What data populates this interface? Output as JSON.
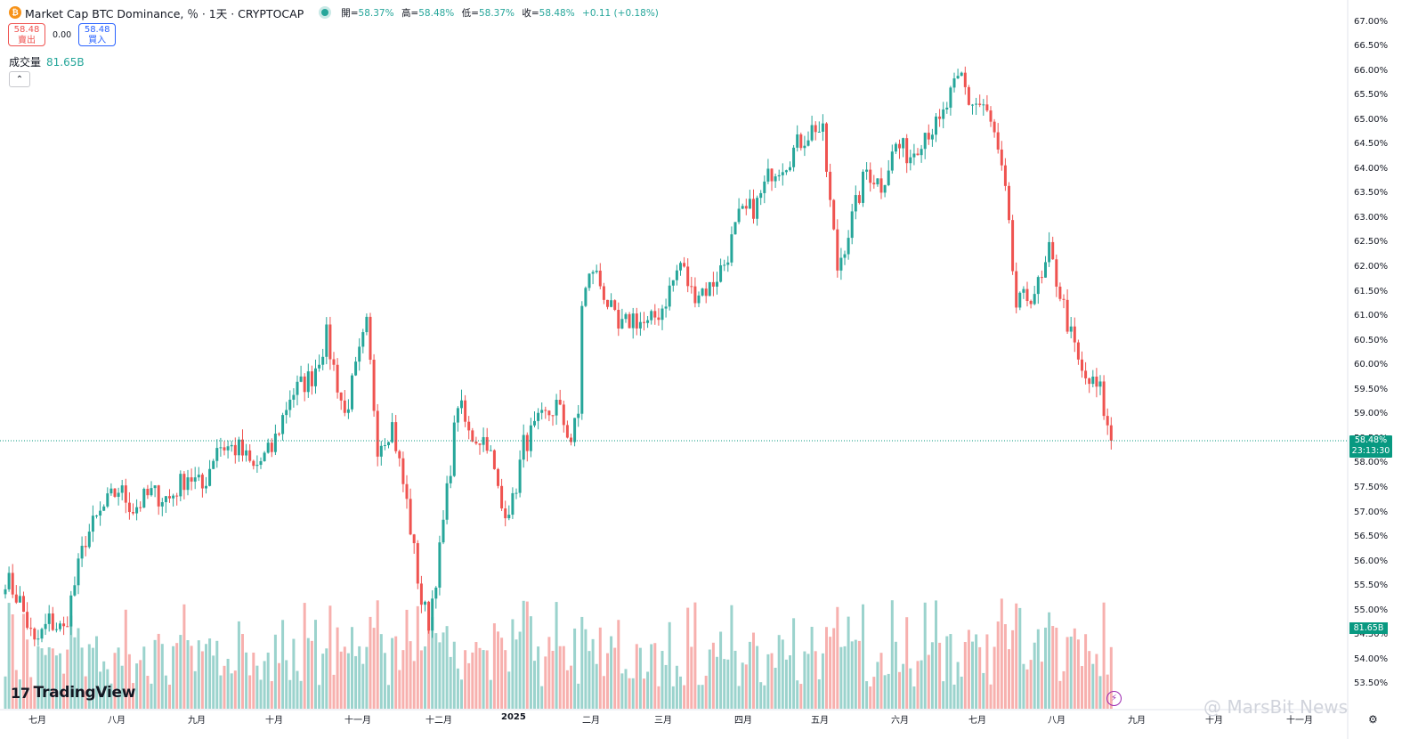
{
  "header": {
    "coin_glyph": "₿",
    "title": "Market Cap BTC Dominance, ％ · 1天 · CRYPTOCAP",
    "open_label": "開=",
    "open": "58.37%",
    "high_label": "高=",
    "high": "58.48%",
    "low_label": "低=",
    "low": "58.37%",
    "close_label": "收=",
    "close": "58.48%",
    "change": "+0.11 (+0.18%)"
  },
  "trade": {
    "sell_price": "58.48",
    "sell_label": "賣出",
    "spread": "0.00",
    "buy_price": "58.48",
    "buy_label": "買入"
  },
  "volume": {
    "label": "成交量",
    "value": "81.65B"
  },
  "collapse_glyph": "⌃",
  "price_tag": {
    "price": "58.48%",
    "countdown": "23:13:30"
  },
  "volume_tag": "81.65B",
  "brand": {
    "mark": "17",
    "name": "TradingView"
  },
  "watermark": "@ MarsBit News",
  "flash_glyph": "⚡",
  "settings_glyph": "⚙",
  "colors": {
    "up": "#26a69a",
    "down": "#ef5350",
    "vol_up": "#9bd3cd",
    "vol_down": "#f7b0ae"
  },
  "chart_data": {
    "type": "candlestick",
    "y_axis_ticks": [
      "67.00%",
      "66.50%",
      "66.00%",
      "65.50%",
      "65.00%",
      "64.50%",
      "64.00%",
      "63.50%",
      "63.00%",
      "62.50%",
      "62.00%",
      "61.50%",
      "61.00%",
      "60.50%",
      "60.00%",
      "59.50%",
      "59.00%",
      "58.50%",
      "58.00%",
      "57.50%",
      "57.00%",
      "56.50%",
      "56.00%",
      "55.50%",
      "55.00%",
      "54.50%",
      "54.00%",
      "53.50%"
    ],
    "ylim": [
      53.2,
      67.2
    ],
    "x_axis_ticks": [
      "七月",
      "八月",
      "九月",
      "十月",
      "十一月",
      "十二月",
      "2025",
      "二月",
      "三月",
      "四月",
      "五月",
      "六月",
      "七月",
      "八月",
      "九月",
      "十月",
      "十一月"
    ],
    "current_price": 58.48,
    "close_path": [
      [
        0,
        55.7
      ],
      [
        4,
        55.2
      ],
      [
        8,
        54.3
      ],
      [
        12,
        54.8
      ],
      [
        16,
        54.6
      ],
      [
        22,
        56.5
      ],
      [
        27,
        57.1
      ],
      [
        31,
        57.5
      ],
      [
        35,
        57.1
      ],
      [
        40,
        57.4
      ],
      [
        45,
        57.3
      ],
      [
        50,
        57.8
      ],
      [
        54,
        57.5
      ],
      [
        58,
        58.4
      ],
      [
        64,
        58.3
      ],
      [
        68,
        57.9
      ],
      [
        73,
        58.3
      ],
      [
        78,
        59.4
      ],
      [
        84,
        59.8
      ],
      [
        88,
        60.6
      ],
      [
        93,
        59.0
      ],
      [
        99,
        60.8
      ],
      [
        102,
        58.4
      ],
      [
        106,
        58.8
      ],
      [
        110,
        57.2
      ],
      [
        114,
        55.2
      ],
      [
        116,
        54.8
      ],
      [
        119,
        56.2
      ],
      [
        122,
        58.0
      ],
      [
        124,
        59.3
      ],
      [
        127,
        58.6
      ],
      [
        132,
        58.5
      ],
      [
        136,
        57.1
      ],
      [
        139,
        57.2
      ],
      [
        142,
        58.4
      ],
      [
        146,
        58.8
      ],
      [
        151,
        59.2
      ],
      [
        155,
        58.5
      ],
      [
        157,
        59.0
      ],
      [
        158,
        61.3
      ],
      [
        161,
        62.0
      ],
      [
        164,
        61.5
      ],
      [
        168,
        60.7
      ],
      [
        172,
        61.0
      ],
      [
        176,
        60.8
      ],
      [
        180,
        61.2
      ],
      [
        185,
        62.1
      ],
      [
        188,
        61.5
      ],
      [
        193,
        61.6
      ],
      [
        197,
        62.1
      ],
      [
        201,
        63.0
      ],
      [
        206,
        63.3
      ],
      [
        210,
        64.0
      ],
      [
        214,
        64.2
      ],
      [
        218,
        64.6
      ],
      [
        222,
        64.9
      ],
      [
        224,
        64.7
      ],
      [
        226,
        63.3
      ],
      [
        228,
        62.0
      ],
      [
        232,
        63.0
      ],
      [
        236,
        64.0
      ],
      [
        240,
        63.7
      ],
      [
        244,
        64.5
      ],
      [
        248,
        64.3
      ],
      [
        252,
        64.8
      ],
      [
        256,
        64.9
      ],
      [
        259,
        65.5
      ],
      [
        262,
        65.9
      ],
      [
        264,
        65.4
      ],
      [
        268,
        65.3
      ],
      [
        271,
        64.7
      ],
      [
        274,
        63.5
      ],
      [
        277,
        61.2
      ],
      [
        280,
        61.4
      ],
      [
        284,
        61.7
      ],
      [
        286,
        62.3
      ],
      [
        289,
        61.5
      ],
      [
        292,
        60.6
      ],
      [
        295,
        59.8
      ],
      [
        298,
        59.6
      ],
      [
        300,
        59.5
      ],
      [
        302,
        58.7
      ],
      [
        303,
        58.48
      ]
    ]
  }
}
